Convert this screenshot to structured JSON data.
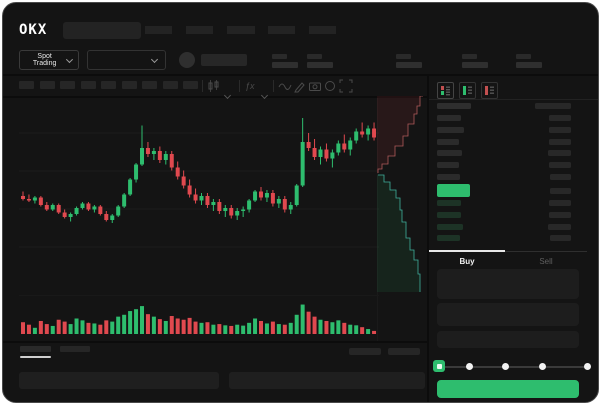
{
  "header": {
    "logo": "OKX"
  },
  "ticker": {
    "market_label": "Spot Trading"
  },
  "trade": {
    "buy_tab": "Buy",
    "sell_tab": "Sell"
  },
  "colors": {
    "green": "#2ebd6e",
    "red": "#e0494f",
    "bid_row": "#1d3326",
    "ask_row": "#2b2b2b",
    "depth_bid_line": "#3fae9c",
    "depth_ask_line": "#b05a5a",
    "grid": "#1d1d1d"
  },
  "orderbook": {
    "header": {
      "price_w": 34,
      "amount_w": 36
    },
    "asks": [
      [
        24,
        22
      ],
      [
        27,
        22
      ],
      [
        22,
        22
      ],
      [
        25,
        23
      ],
      [
        22,
        22
      ],
      [
        23,
        21
      ]
    ],
    "last_price": {
      "w": 33,
      "amount_w": 21
    },
    "bids": [
      [
        24,
        22
      ],
      [
        24,
        22
      ],
      [
        26,
        23
      ],
      [
        23,
        21
      ]
    ]
  },
  "chart_data": {
    "type": "candlestick",
    "title": "",
    "xlabel": "",
    "ylabel": "",
    "x_axis_labels_visible": false,
    "y_axis_labels_visible": false,
    "grid": true,
    "legend": false,
    "ylim": [
      0,
      100
    ],
    "candles_ohlc": [
      [
        40,
        43,
        37,
        38
      ],
      [
        38,
        41,
        36,
        37
      ],
      [
        37,
        40,
        35,
        39
      ],
      [
        39,
        40,
        33,
        34
      ],
      [
        34,
        36,
        30,
        31
      ],
      [
        31,
        35,
        30,
        34
      ],
      [
        34,
        35,
        28,
        29
      ],
      [
        29,
        31,
        25,
        26
      ],
      [
        26,
        29,
        23,
        28
      ],
      [
        28,
        33,
        27,
        32
      ],
      [
        32,
        36,
        31,
        35
      ],
      [
        35,
        36,
        30,
        31
      ],
      [
        31,
        34,
        29,
        33
      ],
      [
        33,
        34,
        27,
        28
      ],
      [
        28,
        30,
        23,
        24
      ],
      [
        24,
        28,
        22,
        27
      ],
      [
        27,
        34,
        26,
        33
      ],
      [
        33,
        42,
        32,
        41
      ],
      [
        41,
        52,
        40,
        51
      ],
      [
        51,
        62,
        49,
        61
      ],
      [
        61,
        87,
        60,
        72
      ],
      [
        72,
        76,
        66,
        68
      ],
      [
        68,
        72,
        64,
        70
      ],
      [
        70,
        73,
        62,
        64
      ],
      [
        64,
        70,
        61,
        68
      ],
      [
        68,
        70,
        57,
        59
      ],
      [
        59,
        63,
        51,
        53
      ],
      [
        53,
        57,
        45,
        47
      ],
      [
        47,
        51,
        39,
        41
      ],
      [
        41,
        45,
        35,
        37
      ],
      [
        37,
        42,
        34,
        40
      ],
      [
        40,
        42,
        32,
        34
      ],
      [
        34,
        38,
        30,
        36
      ],
      [
        36,
        38,
        28,
        30
      ],
      [
        30,
        34,
        26,
        32
      ],
      [
        32,
        34,
        25,
        27
      ],
      [
        27,
        32,
        24,
        30
      ],
      [
        30,
        33,
        26,
        31
      ],
      [
        31,
        38,
        29,
        37
      ],
      [
        37,
        44,
        36,
        43
      ],
      [
        43,
        46,
        37,
        39
      ],
      [
        39,
        44,
        36,
        42
      ],
      [
        42,
        44,
        33,
        35
      ],
      [
        35,
        40,
        32,
        38
      ],
      [
        38,
        40,
        29,
        31
      ],
      [
        31,
        36,
        28,
        34
      ],
      [
        34,
        48,
        33,
        47
      ],
      [
        47,
        92,
        46,
        76
      ],
      [
        76,
        82,
        70,
        72
      ],
      [
        72,
        78,
        64,
        66
      ],
      [
        66,
        73,
        61,
        71
      ],
      [
        71,
        75,
        63,
        65
      ],
      [
        65,
        71,
        59,
        69
      ],
      [
        69,
        77,
        67,
        75
      ],
      [
        75,
        81,
        69,
        71
      ],
      [
        71,
        79,
        67,
        77
      ],
      [
        77,
        85,
        75,
        83
      ],
      [
        83,
        89,
        79,
        81
      ],
      [
        81,
        87,
        77,
        85
      ],
      [
        85,
        89,
        77,
        79
      ]
    ],
    "volume": [
      38,
      30,
      20,
      42,
      32,
      26,
      46,
      40,
      32,
      50,
      44,
      36,
      34,
      30,
      44,
      40,
      56,
      62,
      74,
      80,
      90,
      64,
      56,
      48,
      42,
      58,
      50,
      46,
      52,
      40,
      36,
      38,
      30,
      32,
      28,
      26,
      30,
      27,
      36,
      50,
      42,
      34,
      40,
      32,
      30,
      36,
      62,
      95,
      72,
      56,
      46,
      42,
      38,
      44,
      36,
      30,
      28,
      22,
      16,
      10
    ],
    "depth": {
      "asks_steps": [
        [
          46,
          0
        ],
        [
          43,
          10
        ],
        [
          40,
          18
        ],
        [
          37,
          28
        ],
        [
          31,
          40
        ],
        [
          26,
          50
        ],
        [
          18,
          60
        ],
        [
          11,
          68
        ],
        [
          5,
          73
        ],
        [
          1,
          77
        ]
      ],
      "bids_steps": [
        [
          1,
          79
        ],
        [
          7,
          86
        ],
        [
          13,
          94
        ],
        [
          19,
          102
        ],
        [
          23,
          114
        ],
        [
          25,
          126
        ],
        [
          29,
          142
        ],
        [
          33,
          154
        ],
        [
          37,
          164
        ],
        [
          41,
          178
        ],
        [
          43,
          196
        ]
      ]
    }
  }
}
